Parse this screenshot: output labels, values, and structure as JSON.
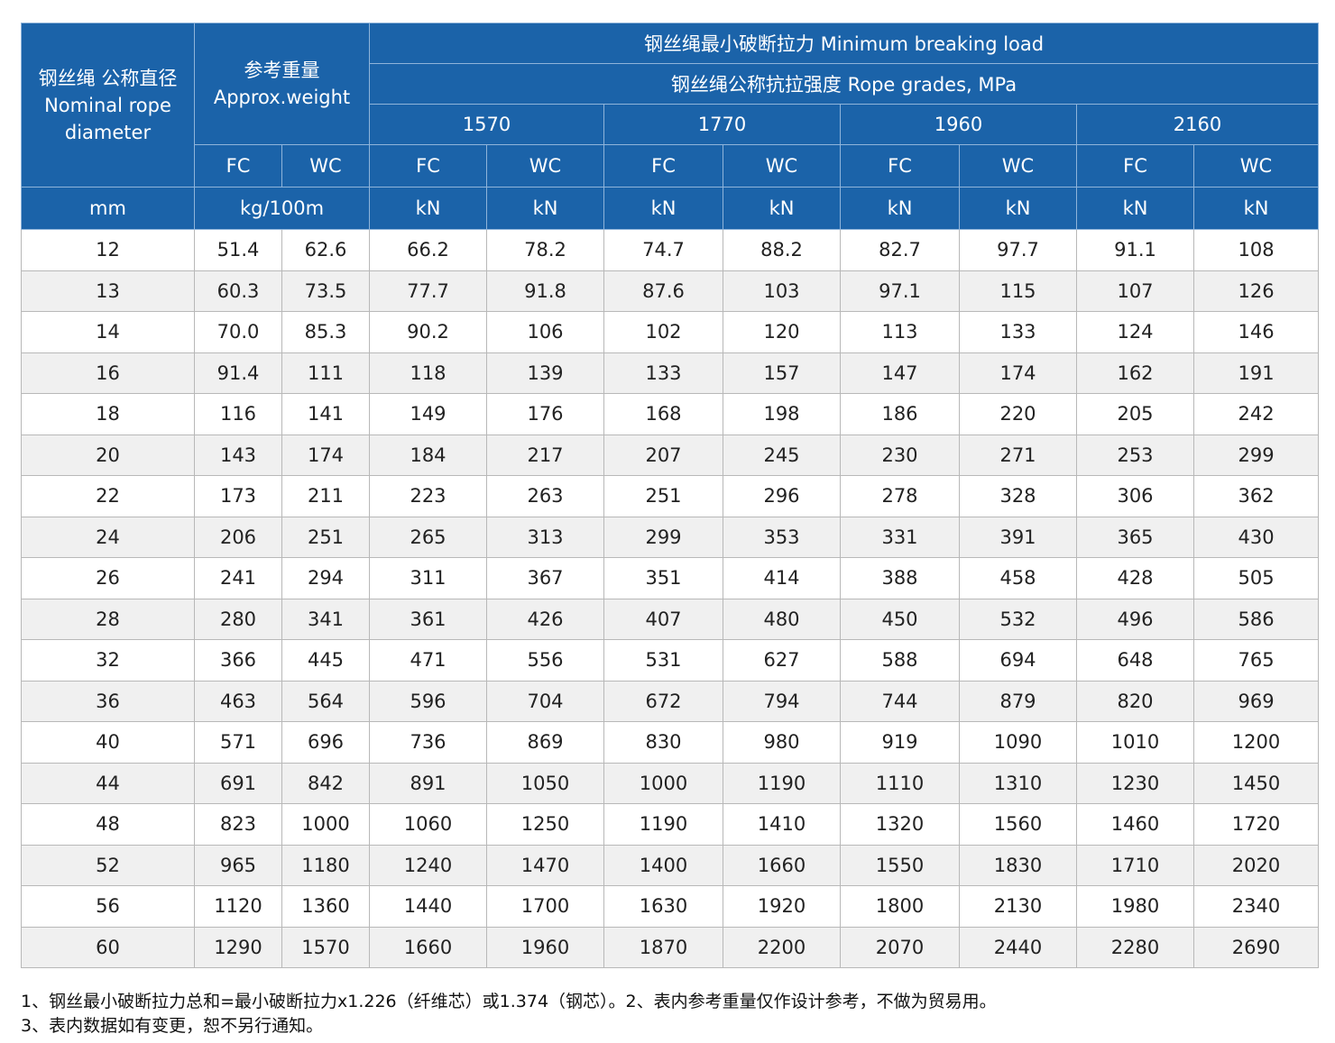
{
  "header": {
    "diameter_cn": "钢丝绳 公称直径",
    "diameter_en_1": "Nominal rope",
    "diameter_en_2": "diameter",
    "weight_cn": "参考重量",
    "weight_en": "Approx.weight",
    "mbl_title": "钢丝绳最小破断拉力 Minimum breaking load",
    "grade_title": "钢丝绳公称抗拉强度 Rope grades, MPa",
    "grades": [
      "1570",
      "1770",
      "1960",
      "2160"
    ],
    "core_labels": [
      "FC",
      "WC",
      "FC",
      "WC",
      "FC",
      "WC",
      "FC",
      "WC",
      "FC",
      "WC"
    ],
    "unit_mm": "mm",
    "unit_weight": "kg/100m",
    "unit_kn": [
      "kN",
      "kN",
      "kN",
      "kN",
      "kN",
      "kN",
      "kN",
      "kN"
    ]
  },
  "rows": [
    [
      "12",
      "51.4",
      "62.6",
      "66.2",
      "78.2",
      "74.7",
      "88.2",
      "82.7",
      "97.7",
      "91.1",
      "108"
    ],
    [
      "13",
      "60.3",
      "73.5",
      "77.7",
      "91.8",
      "87.6",
      "103",
      "97.1",
      "115",
      "107",
      "126"
    ],
    [
      "14",
      "70.0",
      "85.3",
      "90.2",
      "106",
      "102",
      "120",
      "113",
      "133",
      "124",
      "146"
    ],
    [
      "16",
      "91.4",
      "111",
      "118",
      "139",
      "133",
      "157",
      "147",
      "174",
      "162",
      "191"
    ],
    [
      "18",
      "116",
      "141",
      "149",
      "176",
      "168",
      "198",
      "186",
      "220",
      "205",
      "242"
    ],
    [
      "20",
      "143",
      "174",
      "184",
      "217",
      "207",
      "245",
      "230",
      "271",
      "253",
      "299"
    ],
    [
      "22",
      "173",
      "211",
      "223",
      "263",
      "251",
      "296",
      "278",
      "328",
      "306",
      "362"
    ],
    [
      "24",
      "206",
      "251",
      "265",
      "313",
      "299",
      "353",
      "331",
      "391",
      "365",
      "430"
    ],
    [
      "26",
      "241",
      "294",
      "311",
      "367",
      "351",
      "414",
      "388",
      "458",
      "428",
      "505"
    ],
    [
      "28",
      "280",
      "341",
      "361",
      "426",
      "407",
      "480",
      "450",
      "532",
      "496",
      "586"
    ],
    [
      "32",
      "366",
      "445",
      "471",
      "556",
      "531",
      "627",
      "588",
      "694",
      "648",
      "765"
    ],
    [
      "36",
      "463",
      "564",
      "596",
      "704",
      "672",
      "794",
      "744",
      "879",
      "820",
      "969"
    ],
    [
      "40",
      "571",
      "696",
      "736",
      "869",
      "830",
      "980",
      "919",
      "1090",
      "1010",
      "1200"
    ],
    [
      "44",
      "691",
      "842",
      "891",
      "1050",
      "1000",
      "1190",
      "1110",
      "1310",
      "1230",
      "1450"
    ],
    [
      "48",
      "823",
      "1000",
      "1060",
      "1250",
      "1190",
      "1410",
      "1320",
      "1560",
      "1460",
      "1720"
    ],
    [
      "52",
      "965",
      "1180",
      "1240",
      "1470",
      "1400",
      "1660",
      "1550",
      "1830",
      "1710",
      "2020"
    ],
    [
      "56",
      "1120",
      "1360",
      "1440",
      "1700",
      "1630",
      "1920",
      "1800",
      "2130",
      "1980",
      "2340"
    ],
    [
      "60",
      "1290",
      "1570",
      "1660",
      "1960",
      "1870",
      "2200",
      "2070",
      "2440",
      "2280",
      "2690"
    ]
  ],
  "notes": [
    "1、钢丝最小破断拉力总和=最小破断拉力x1.226（纤维芯）或1.374（钢芯）。2、表内参考重量仅作设计参考，不做为贸易用。",
    "3、表内数据如有变更，恕不另行通知。"
  ],
  "colors": {
    "header_bg": "#1b63a9",
    "header_text": "#ffffff",
    "row_alt": "#f0f0f0"
  }
}
